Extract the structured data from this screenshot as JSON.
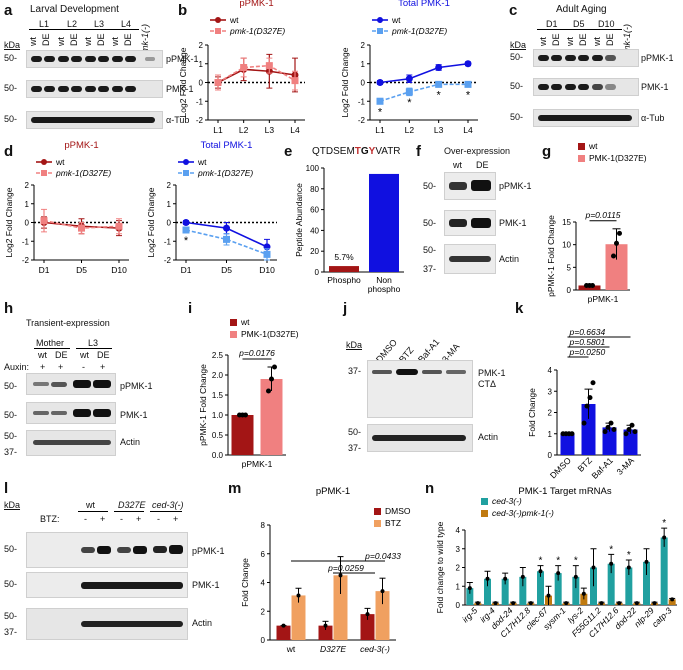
{
  "panels": {
    "a": {
      "label": "a",
      "title": "Larval Development",
      "groups": [
        "L1",
        "L2",
        "L3",
        "L4"
      ],
      "lanes": [
        "wt",
        "DE"
      ],
      "extra_lane": "pmk-1(-)",
      "kda": "kDa",
      "rows": [
        {
          "mw": "50-",
          "name": "pPMK-1"
        },
        {
          "mw": "50-",
          "name": "PMK-1"
        },
        {
          "mw": "50-",
          "name": "α-Tub"
        }
      ]
    },
    "b": {
      "label": "b"
    },
    "c": {
      "label": "c",
      "title": "Adult Aging",
      "groups": [
        "D1",
        "D5",
        "D10"
      ],
      "lanes": [
        "wt",
        "DE"
      ],
      "extra_lane": "pmk-1(-)",
      "kda": "kDa",
      "rows": [
        {
          "mw": "50-",
          "name": "pPMK-1"
        },
        {
          "mw": "50-",
          "name": "PMK-1"
        },
        {
          "mw": "50-",
          "name": "α-Tub"
        }
      ]
    },
    "d": {
      "label": "d"
    },
    "e": {
      "label": "e",
      "sequence_pre": "QTDSEM",
      "sequence_t": "T",
      "sequence_g": "G",
      "sequence_y": "Y",
      "sequence_post": "VATR"
    },
    "f": {
      "label": "f",
      "title": "Over-expression",
      "lanes": [
        "wt",
        "DE"
      ],
      "rows": [
        {
          "mw": "50-",
          "name": "pPMK-1"
        },
        {
          "mw": "50-",
          "name": "PMK-1"
        },
        {
          "mw": "50-",
          "mw2": "37-",
          "name": "Actin"
        }
      ]
    },
    "g": {
      "label": "g"
    },
    "h": {
      "label": "h",
      "title": "Transient-expression",
      "groups": [
        "Mother",
        "L3"
      ],
      "lanes": [
        "wt",
        "DE",
        "wt",
        "DE"
      ],
      "auxin_label": "Auxin:",
      "auxin": [
        "+",
        "+",
        "-",
        "+"
      ],
      "rows": [
        {
          "mw": "50-",
          "name": "pPMK-1"
        },
        {
          "mw": "50-",
          "name": "PMK-1"
        },
        {
          "mw": "50-",
          "mw2": "37-",
          "name": "Actin"
        }
      ]
    },
    "i": {
      "label": "i"
    },
    "j": {
      "label": "j",
      "kda": "kDa",
      "lanes": [
        "DMSO",
        "BTZ",
        "Baf-A1",
        "3-MA"
      ],
      "rows": [
        {
          "mw": "37-",
          "name": "PMK-1",
          "name2": "CTΔ"
        },
        {
          "mw": "50-",
          "mw2": "37-",
          "name": "Actin"
        }
      ]
    },
    "k": {
      "label": "k"
    },
    "l": {
      "label": "l",
      "kda": "kDa",
      "groups": [
        "wt",
        "D327E",
        "ced-3(-)"
      ],
      "btz_label": "BTZ:",
      "btz": [
        "-",
        "+",
        "-",
        "+",
        "-",
        "+"
      ],
      "rows": [
        {
          "mw": "50-",
          "name": "pPMK-1"
        },
        {
          "mw": "50-",
          "name": "PMK-1"
        },
        {
          "mw": "50-",
          "mw2": "37-",
          "name": "Actin"
        }
      ]
    },
    "m": {
      "label": "m"
    },
    "n": {
      "label": "n"
    }
  },
  "chart_data": [
    {
      "id": "b1",
      "type": "line",
      "title": "pPMK-1",
      "xlabel": "",
      "ylabel": "Log2 Fold Change",
      "categories": [
        "L1",
        "L2",
        "L3",
        "L4"
      ],
      "ylim": [
        -2,
        2
      ],
      "yticks": [
        "-2",
        "-1",
        "0",
        "1",
        "2"
      ],
      "series": [
        {
          "name": "wt",
          "values": [
            0,
            0.7,
            0.6,
            0.4
          ],
          "err": [
            0.3,
            0.6,
            0.9,
            0.9
          ],
          "color": "#a31515"
        },
        {
          "name": "pmk-1(D327E)",
          "values": [
            0,
            0.8,
            0.9,
            0.1
          ],
          "err": [
            0.4,
            0.5,
            0.4,
            0.5
          ],
          "color": "#f08080"
        }
      ]
    },
    {
      "id": "b2",
      "type": "line",
      "title": "Total PMK-1",
      "xlabel": "",
      "ylabel": "Log2 Fold Change",
      "categories": [
        "L1",
        "L2",
        "L3",
        "L4"
      ],
      "ylim": [
        -2,
        2
      ],
      "yticks": [
        "-2",
        "-1",
        "0",
        "1",
        "2"
      ],
      "sig": [
        "*",
        "*",
        "*",
        "*"
      ],
      "series": [
        {
          "name": "wt",
          "values": [
            0,
            0.2,
            0.8,
            1.0
          ],
          "err": [
            0.1,
            0.2,
            0.15,
            0.1
          ],
          "color": "#1010e0"
        },
        {
          "name": "pmk-1(D327E)",
          "values": [
            -1.0,
            -0.5,
            -0.1,
            -0.1
          ],
          "err": [
            0.15,
            0.2,
            0.1,
            0.1
          ],
          "color": "#5aa0f0"
        }
      ]
    },
    {
      "id": "d1",
      "type": "line",
      "title": "pPMK-1",
      "xlabel": "",
      "ylabel": "Log2 Fold Change",
      "categories": [
        "D1",
        "D5",
        "D10"
      ],
      "ylim": [
        -2,
        2
      ],
      "yticks": [
        "-2",
        "-1",
        "0",
        "1",
        "2"
      ],
      "series": [
        {
          "name": "wt",
          "values": [
            0,
            -0.2,
            -0.3
          ],
          "err": [
            0.3,
            0.4,
            0.4
          ],
          "color": "#a31515"
        },
        {
          "name": "pmk-1(D327E)",
          "values": [
            0.1,
            -0.3,
            -0.2
          ],
          "err": [
            0.6,
            0.3,
            0.4
          ],
          "color": "#f08080"
        }
      ]
    },
    {
      "id": "d2",
      "type": "line",
      "title": "Total PMK-1",
      "xlabel": "",
      "ylabel": "Log2 Fold Change",
      "categories": [
        "D1",
        "D5",
        "D10"
      ],
      "ylim": [
        -2,
        2
      ],
      "yticks": [
        "-2",
        "-1",
        "0",
        "1",
        "2"
      ],
      "sig": [
        "*",
        "",
        ""
      ],
      "series": [
        {
          "name": "wt",
          "values": [
            0,
            -0.3,
            -1.3
          ],
          "err": [
            0.1,
            0.3,
            0.4
          ],
          "color": "#1010e0"
        },
        {
          "name": "pmk-1(D327E)",
          "values": [
            -0.4,
            -0.9,
            -1.7
          ],
          "err": [
            0.1,
            0.3,
            0.3
          ],
          "color": "#5aa0f0"
        }
      ]
    },
    {
      "id": "e",
      "type": "bar",
      "title": "QTDSEMTGYVATR",
      "ylabel": "Peptide Abundance",
      "categories": [
        "Phospho",
        "Non phospho"
      ],
      "values": [
        5.7,
        94.3
      ],
      "colors": [
        "#a31515",
        "#1010e0"
      ],
      "bar_label": "5.7%",
      "ylim": [
        0,
        100
      ],
      "yticks": [
        "0",
        "20",
        "40",
        "60",
        "80",
        "100"
      ]
    },
    {
      "id": "g",
      "type": "bar",
      "ylabel": "pPMK-1 Fold Change",
      "xlabel": "pPMK-1",
      "categories": [
        "wt",
        "PMK-1(D327E)"
      ],
      "values": [
        1.0,
        10.1
      ],
      "err": [
        0.1,
        3.4
      ],
      "colors": [
        "#a31515",
        "#f08080"
      ],
      "pvalue": "p=0.0115",
      "ylim": [
        0,
        15
      ],
      "yticks": [
        "0",
        "5",
        "10",
        "15"
      ],
      "points": [
        [
          1,
          1,
          1
        ],
        [
          7.5,
          10.3,
          12.5
        ]
      ]
    },
    {
      "id": "i",
      "type": "bar",
      "ylabel": "pPMK-1 Fold Change",
      "xlabel": "pPMK-1",
      "categories": [
        "wt",
        "PMK-1(D327E)"
      ],
      "values": [
        1.0,
        1.9
      ],
      "err": [
        0,
        0.3
      ],
      "colors": [
        "#a31515",
        "#f08080"
      ],
      "pvalue": "p=0.0176",
      "ylim": [
        0,
        2.5
      ],
      "yticks": [
        "0.0",
        "0.5",
        "1.0",
        "1.5",
        "2.0",
        "2.5"
      ],
      "points": [
        [
          1,
          1,
          1
        ],
        [
          1.6,
          1.9,
          2.2
        ]
      ]
    },
    {
      "id": "k",
      "type": "bar",
      "ylabel": "Fold Change",
      "categories": [
        "DMSO",
        "BTZ",
        "Baf-A1",
        "3-MA"
      ],
      "values": [
        1.0,
        2.4,
        1.3,
        1.2
      ],
      "err": [
        0,
        0.7,
        0.2,
        0.2
      ],
      "colors": [
        "#1010e0",
        "#1010e0",
        "#1010e0",
        "#1010e0"
      ],
      "pvalues": [
        "p=0.0250",
        "p=0.5801",
        "p=0.6634"
      ],
      "ylim": [
        0,
        4
      ],
      "yticks": [
        "0",
        "1",
        "2",
        "3",
        "4"
      ],
      "points": [
        [
          1,
          1,
          1,
          1
        ],
        [
          1.5,
          2.3,
          2.7,
          3.4
        ],
        [
          1.1,
          1.3,
          1.5,
          1.2
        ],
        [
          1.0,
          1.2,
          1.4,
          1.1
        ]
      ]
    },
    {
      "id": "m",
      "type": "bar",
      "title": "pPMK-1",
      "ylabel": "Fold Change",
      "categories": [
        "wt",
        "D327E",
        "ced-3(-)"
      ],
      "series": [
        {
          "name": "DMSO",
          "values": [
            1.0,
            1.0,
            1.8
          ],
          "err": [
            0,
            0.3,
            0.4
          ],
          "color": "#a31515"
        },
        {
          "name": "BTZ",
          "values": [
            3.1,
            4.5,
            3.4
          ],
          "err": [
            0.5,
            1.3,
            0.9
          ],
          "color": "#f0a060"
        }
      ],
      "pvalues": [
        "p=0.0259",
        "p=0.0433"
      ],
      "ylim": [
        0,
        8
      ],
      "yticks": [
        "0",
        "2",
        "4",
        "6",
        "8"
      ]
    },
    {
      "id": "n",
      "type": "bar",
      "title": "PMK-1 Target mRNAs",
      "ylabel": "Fold change to wild type",
      "categories": [
        "irg-5",
        "irg-4",
        "dod-24",
        "C17H12.8",
        "clec-67",
        "sysm-1",
        "lys-2",
        "F55G11.2",
        "C17H12.6",
        "dod-22",
        "nlp-29",
        "catp-3"
      ],
      "series": [
        {
          "name": "ced-3(-)",
          "values": [
            0.9,
            1.4,
            1.4,
            1.5,
            1.8,
            1.7,
            1.5,
            2.0,
            2.2,
            2.0,
            2.3,
            3.6
          ],
          "err": [
            0.3,
            0.4,
            0.3,
            0.5,
            0.3,
            0.4,
            0.6,
            1.0,
            0.5,
            0.4,
            0.7,
            0.5
          ],
          "color": "#20a0a0"
        },
        {
          "name": "ced-3(-)pmk-1(-)",
          "values": [
            0.1,
            0.1,
            0.1,
            0.1,
            0.5,
            0.1,
            0.6,
            0.1,
            0.1,
            0.1,
            0.1,
            0.3
          ],
          "err": [
            0.05,
            0.05,
            0.05,
            0.05,
            0.5,
            0.05,
            0.3,
            0.05,
            0.05,
            0.05,
            0.05,
            0.05
          ],
          "color": "#c07a10"
        }
      ],
      "sig": [
        "",
        "",
        "",
        "",
        "*",
        "*",
        "*",
        "",
        "*",
        "*",
        "",
        "*"
      ],
      "ylim": [
        0,
        4
      ],
      "yticks": [
        "0",
        "1",
        "2",
        "3",
        "4"
      ]
    }
  ]
}
